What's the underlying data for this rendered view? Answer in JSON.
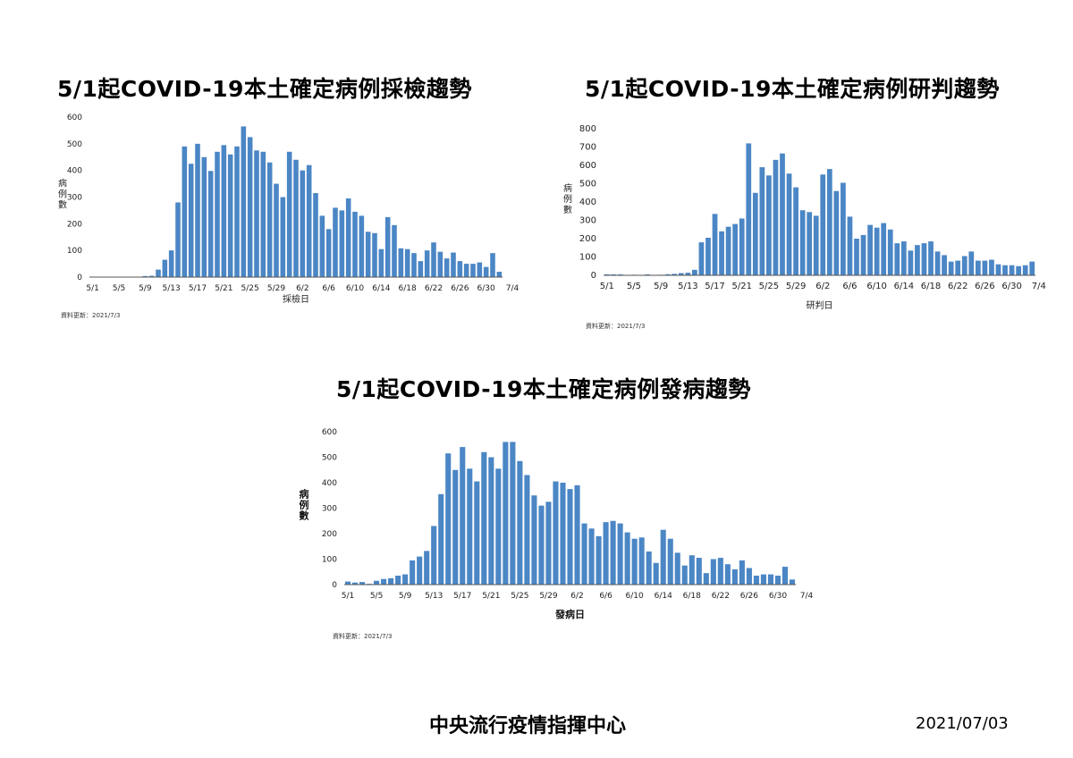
{
  "charts_text": {
    "c1": {
      "title": "5/1起COVID-19本土確定病例採檢趨勢",
      "xlabel": "採檢日",
      "ylabel": "病\n例\n數",
      "note": "資料更新：2021/7/3"
    },
    "c2": {
      "title": "5/1起COVID-19本土確定病例研判趨勢",
      "xlabel": "研判日",
      "ylabel": "病\n例\n數",
      "note": "資料更新：2021/7/3"
    },
    "c3": {
      "title": "5/1起COVID-19本土確定病例發病趨勢",
      "xlabel": "發病日",
      "ylabel": "病\n例\n數",
      "note": "資料更新：2021/7/3"
    }
  },
  "footer": {
    "org": "中央流行疫情指揮中心",
    "date": "2021/07/03"
  },
  "chart_data": [
    {
      "type": "bar",
      "title": "5/1起COVID-19本土確定病例採檢趨勢",
      "xlabel": "採檢日",
      "ylabel": "病例數",
      "ylim": [
        0,
        600
      ],
      "yticks": [
        0,
        100,
        200,
        300,
        400,
        500,
        600
      ],
      "xticks": [
        "5/1",
        "5/5",
        "5/9",
        "5/13",
        "5/17",
        "5/21",
        "5/25",
        "5/29",
        "6/2",
        "6/6",
        "6/10",
        "6/14",
        "6/18",
        "6/22",
        "6/26",
        "6/30",
        "7/4"
      ],
      "values": [
        1,
        1,
        1,
        1,
        1,
        1,
        1,
        1,
        4,
        5,
        28,
        65,
        100,
        280,
        490,
        425,
        500,
        450,
        398,
        470,
        495,
        460,
        490,
        565,
        525,
        475,
        470,
        430,
        350,
        300,
        470,
        440,
        400,
        420,
        315,
        230,
        180,
        260,
        250,
        295,
        245,
        230,
        170,
        165,
        105,
        225,
        195,
        108,
        105,
        90,
        60,
        100,
        130,
        95,
        70,
        92,
        60,
        50,
        50,
        55,
        38,
        90,
        20
      ]
    },
    {
      "type": "bar",
      "title": "5/1起COVID-19本土確定病例研判趨勢",
      "xlabel": "研判日",
      "ylabel": "病例數",
      "ylim": [
        0,
        800
      ],
      "yticks": [
        0,
        100,
        200,
        300,
        400,
        500,
        600,
        700,
        800
      ],
      "xticks": [
        "5/1",
        "5/5",
        "5/9",
        "5/13",
        "5/17",
        "5/21",
        "5/25",
        "5/29",
        "6/2",
        "6/6",
        "6/10",
        "6/14",
        "6/18",
        "6/22",
        "6/26",
        "6/30",
        "7/4"
      ],
      "values": [
        5,
        5,
        5,
        1,
        3,
        1,
        5,
        1,
        3,
        6,
        8,
        12,
        14,
        30,
        180,
        205,
        335,
        240,
        265,
        280,
        310,
        720,
        450,
        590,
        545,
        630,
        665,
        555,
        480,
        355,
        345,
        325,
        550,
        580,
        460,
        505,
        320,
        200,
        220,
        275,
        260,
        285,
        250,
        175,
        185,
        135,
        165,
        175,
        185,
        130,
        110,
        75,
        80,
        105,
        130,
        80,
        80,
        85,
        60,
        55,
        55,
        50,
        55,
        75
      ]
    },
    {
      "type": "bar",
      "title": "5/1起COVID-19本土確定病例發病趨勢",
      "xlabel": "發病日",
      "ylabel": "病例數",
      "ylim": [
        0,
        600
      ],
      "yticks": [
        0,
        100,
        200,
        300,
        400,
        500,
        600
      ],
      "xticks": [
        "5/1",
        "5/5",
        "5/9",
        "5/13",
        "5/17",
        "5/21",
        "5/25",
        "5/29",
        "6/2",
        "6/6",
        "6/10",
        "6/14",
        "6/18",
        "6/22",
        "6/26",
        "6/30",
        "7/4"
      ],
      "values": [
        12,
        8,
        10,
        3,
        15,
        22,
        25,
        35,
        40,
        95,
        110,
        132,
        230,
        355,
        515,
        450,
        540,
        455,
        405,
        520,
        500,
        455,
        560,
        560,
        485,
        430,
        350,
        310,
        325,
        405,
        400,
        375,
        390,
        240,
        220,
        190,
        245,
        250,
        240,
        205,
        180,
        185,
        130,
        85,
        215,
        180,
        125,
        75,
        115,
        105,
        45,
        100,
        105,
        80,
        60,
        95,
        65,
        35,
        40,
        40,
        35,
        70,
        20
      ]
    }
  ]
}
